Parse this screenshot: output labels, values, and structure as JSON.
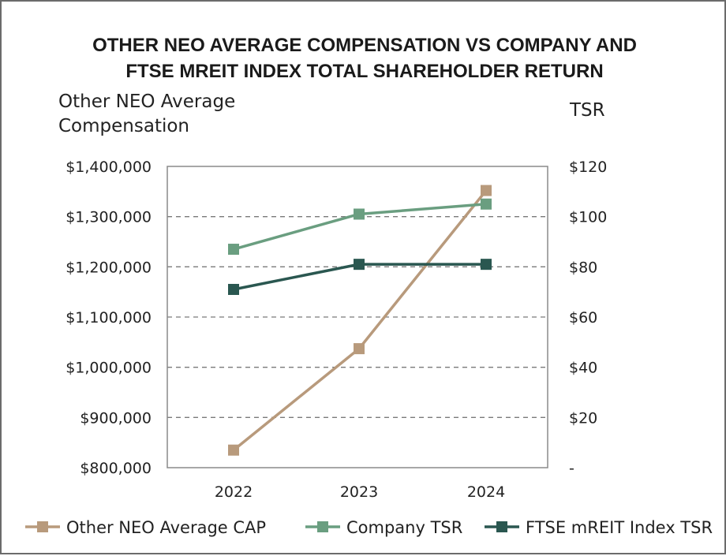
{
  "chart_data": {
    "type": "line",
    "title_lines": [
      "OTHER NEO AVERAGE COMPENSATION VS COMPANY AND",
      "FTSE MREIT INDEX TOTAL SHAREHOLDER RETURN"
    ],
    "y_left_label_lines": [
      "Other NEO Average",
      "Compensation"
    ],
    "y_right_label": "TSR",
    "categories": [
      "2022",
      "2023",
      "2024"
    ],
    "y_left": {
      "min": 800000,
      "max": 1400000,
      "ticks": [
        1400000,
        1300000,
        1200000,
        1100000,
        1000000,
        900000,
        800000
      ],
      "tick_labels": [
        "$1,400,000",
        "$1,300,000",
        "$1,200,000",
        "$1,100,000",
        "$1,000,000",
        "$900,000",
        "$800,000"
      ]
    },
    "y_right": {
      "min": 0,
      "max": 120,
      "ticks": [
        120,
        100,
        80,
        60,
        40,
        20,
        0
      ],
      "tick_labels": [
        "$120",
        "$100",
        "$80",
        "$60",
        "$40",
        "$20",
        "-"
      ]
    },
    "series": [
      {
        "name": "Other NEO Average CAP",
        "axis": "left",
        "color": "#b89a7c",
        "values": [
          835000,
          1037000,
          1352000
        ]
      },
      {
        "name": "Company TSR",
        "axis": "right",
        "color": "#6a9e80",
        "values": [
          87,
          101,
          105
        ]
      },
      {
        "name": "FTSE mREIT Index TSR",
        "axis": "right",
        "color": "#2a5750",
        "values": [
          71,
          81,
          81
        ]
      }
    ],
    "grid": "horizontal-dashed",
    "legend_position": "bottom"
  }
}
